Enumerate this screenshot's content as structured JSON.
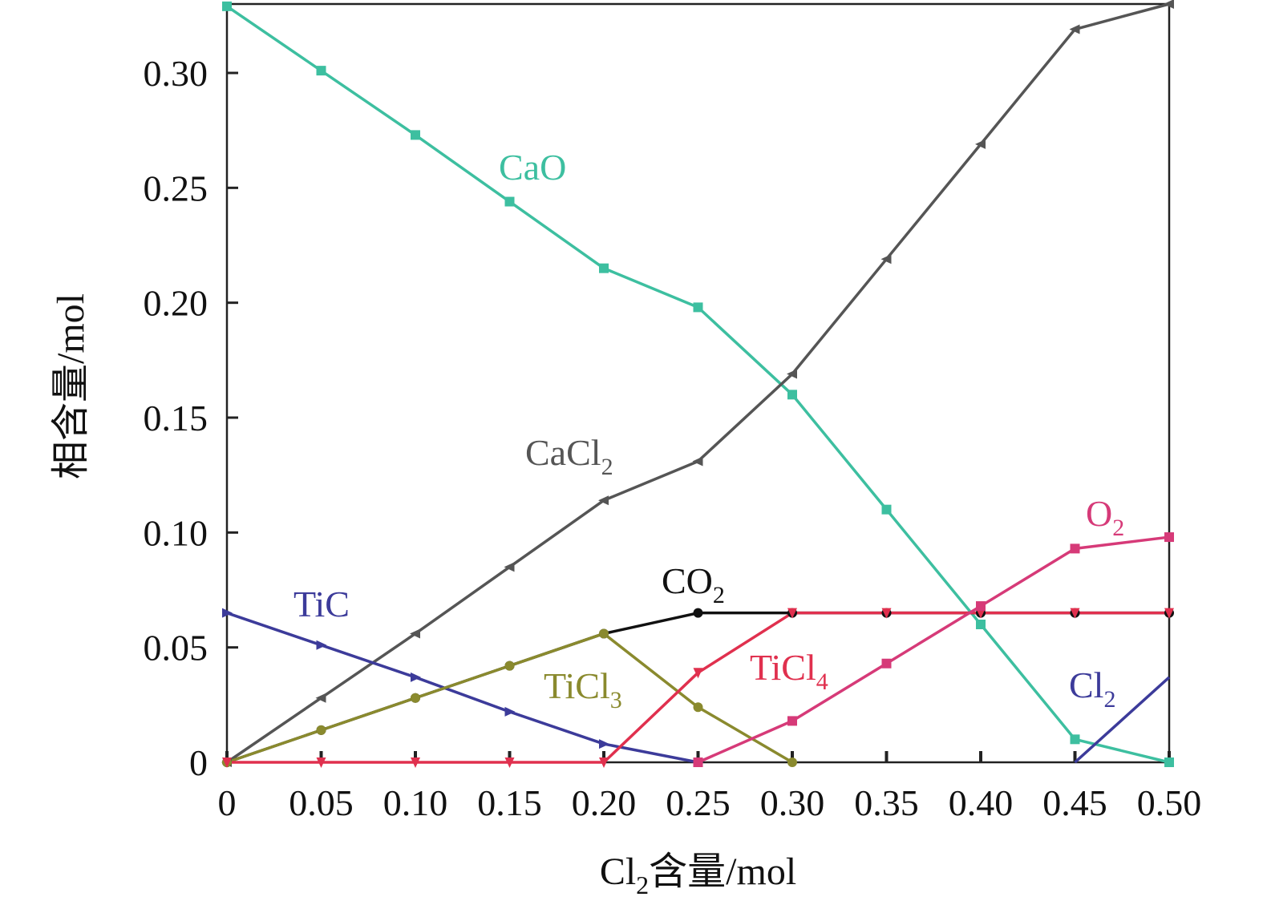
{
  "chart_data": {
    "type": "line",
    "xlabel": {
      "main": "Cl",
      "sub": "2",
      "rest": "含量/mol"
    },
    "ylabel": "相含量/mol",
    "xlim": [
      0,
      0.5
    ],
    "ylim": [
      0,
      0.33
    ],
    "xticks": [
      "0",
      "0.05",
      "0.10",
      "0.15",
      "0.20",
      "0.25",
      "0.30",
      "0.35",
      "0.40",
      "0.45",
      "0.50"
    ],
    "yticks": [
      "0",
      "0.05",
      "0.10",
      "0.15",
      "0.20",
      "0.25",
      "0.30"
    ],
    "grid": false,
    "x": [
      0,
      0.05,
      0.1,
      0.15,
      0.2,
      0.25,
      0.3,
      0.35,
      0.4,
      0.45,
      0.5
    ],
    "series": [
      {
        "id": "cao",
        "label": "CaO",
        "color": "#3dbfa0",
        "marker": "square",
        "values": [
          0.329,
          0.301,
          0.273,
          0.244,
          0.215,
          0.198,
          0.16,
          0.11,
          0.06,
          0.01,
          0.0
        ]
      },
      {
        "id": "cacl2",
        "label": "CaCl",
        "sub": "2",
        "color": "#555555",
        "marker": "triangle-left",
        "values": [
          0.0,
          0.028,
          0.056,
          0.085,
          0.114,
          0.131,
          0.169,
          0.219,
          0.269,
          0.319,
          0.33
        ]
      },
      {
        "id": "tic",
        "label": "TiC",
        "color": "#3c3b9a",
        "marker": "triangle-right",
        "values": [
          0.065,
          0.051,
          0.037,
          0.022,
          0.008,
          0.0,
          null,
          null,
          null,
          null,
          null
        ]
      },
      {
        "id": "co2",
        "label": "CO",
        "sub": "2",
        "color": "#111111",
        "marker": "circle",
        "values": [
          0.0,
          0.014,
          0.028,
          0.042,
          0.056,
          0.065,
          0.065,
          0.065,
          0.065,
          0.065,
          0.065
        ]
      },
      {
        "id": "ticl3",
        "label": "TiCl",
        "sub": "3",
        "color": "#8a8a2e",
        "marker": "circle",
        "values": [
          0.0,
          0.014,
          0.028,
          0.042,
          0.056,
          0.024,
          0.0,
          null,
          null,
          null,
          null
        ]
      },
      {
        "id": "ticl4",
        "label": "TiCl",
        "sub": "4",
        "color": "#e0304e",
        "marker": "triangle-down",
        "values": [
          0.0,
          0.0,
          0.0,
          0.0,
          0.0,
          0.039,
          0.065,
          0.065,
          0.065,
          0.065,
          0.065
        ]
      },
      {
        "id": "o2",
        "label": "O",
        "sub": "2",
        "color": "#d63a78",
        "marker": "square",
        "values": [
          null,
          null,
          null,
          null,
          null,
          0.0,
          0.018,
          0.043,
          0.068,
          0.093,
          0.098
        ]
      },
      {
        "id": "cl2",
        "label": "Cl",
        "sub": "2",
        "color": "#3c3b9a",
        "marker": "none",
        "values": [
          null,
          null,
          null,
          null,
          null,
          null,
          null,
          null,
          null,
          0.0,
          0.037
        ]
      }
    ]
  }
}
